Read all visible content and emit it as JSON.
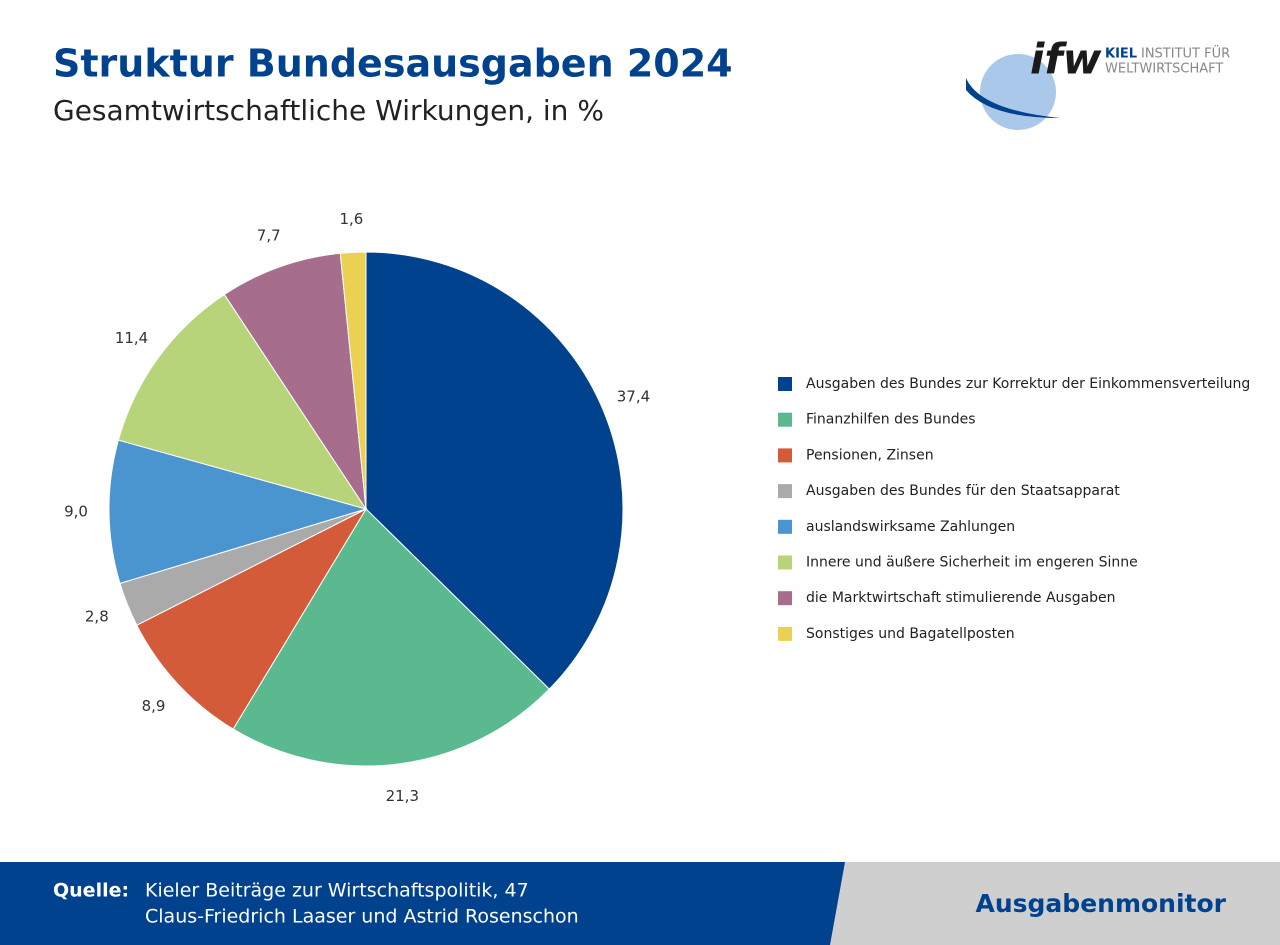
{
  "chart_data": {
    "type": "pie",
    "title": "Struktur Bundesausgaben 2024",
    "subtitle": "Gesamtwirtschaftliche Wirkungen, in %",
    "categories": [
      "Ausgaben des Bundes zur Korrektur der Einkommensverteilung",
      "Finanzhilfen des Bundes",
      "Pensionen, Zinsen",
      "Ausgaben des Bundes für den Staatsapparat",
      "auslandswirksame Zahlungen",
      "Innere und äußere Sicherheit im engeren Sinne",
      "die Marktwirtschaft stimulierende Ausgaben",
      "Sonstiges und Bagatellposten"
    ],
    "values": [
      37.4,
      21.3,
      8.9,
      2.8,
      9.0,
      11.4,
      7.7,
      1.6
    ],
    "value_labels": [
      "37,4",
      "21,3",
      "8,9",
      "2,8",
      "9,0",
      "11,4",
      "7,7",
      "1,6"
    ],
    "colors": [
      "#00428e",
      "#5ab98f",
      "#d35b3a",
      "#aaaaaa",
      "#4a94d0",
      "#b8d47a",
      "#a66d8c",
      "#ead154"
    ],
    "legend": "right"
  },
  "logo": {
    "mark": "ifw",
    "line1": "KIEL",
    "line1b": "INSTITUT FÜR",
    "line2": "WELTWIRTSCHAFT"
  },
  "footer": {
    "label": "Quelle:",
    "source1": "Kieler Beiträge zur Wirtschaftspolitik, 47",
    "source2": "Claus-Friedrich Laaser und Astrid Rosenschon",
    "brand": "Ausgabenmonitor"
  }
}
